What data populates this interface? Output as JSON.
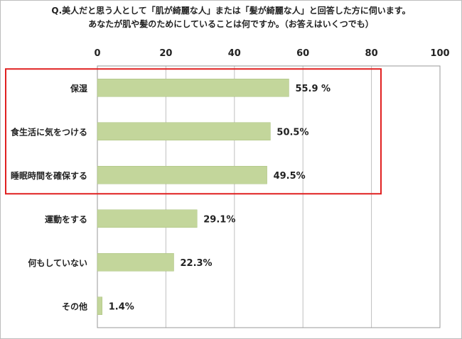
{
  "chart_data": {
    "type": "bar",
    "orientation": "horizontal",
    "title_lines": [
      "Q.美人だと思う人として「肌が綺麗な人」または「髪が綺麗な人」と回答した方に伺います。",
      "あなたが肌や髪のためにしていることは何ですか。（お答えはいくつでも）"
    ],
    "categories": [
      "保湿",
      "食生活に気をつける",
      "睡眠時間を確保する",
      "運動をする",
      "何もしていない",
      "その他"
    ],
    "values": [
      55.9,
      50.5,
      49.5,
      29.1,
      22.3,
      1.4
    ],
    "value_labels": [
      "55.9 %",
      "50.5%",
      "49.5%",
      "29.1%",
      "22.3%",
      "1.4%"
    ],
    "xlim": [
      0,
      100
    ],
    "ticks": [
      0,
      20,
      40,
      60,
      80,
      100
    ],
    "tick_labels": [
      "0",
      "20",
      "40",
      "60",
      "80",
      "100"
    ],
    "xaxis_position": "top",
    "grid": true,
    "highlight_box_categories": [
      0,
      2
    ]
  },
  "colors": {
    "bar": "#c3d69b",
    "bar_stroke": "#a9c07d",
    "grid": "#bfbfbf",
    "axis": "#999999",
    "highlight_box": "#e02020",
    "text": "#222222"
  }
}
